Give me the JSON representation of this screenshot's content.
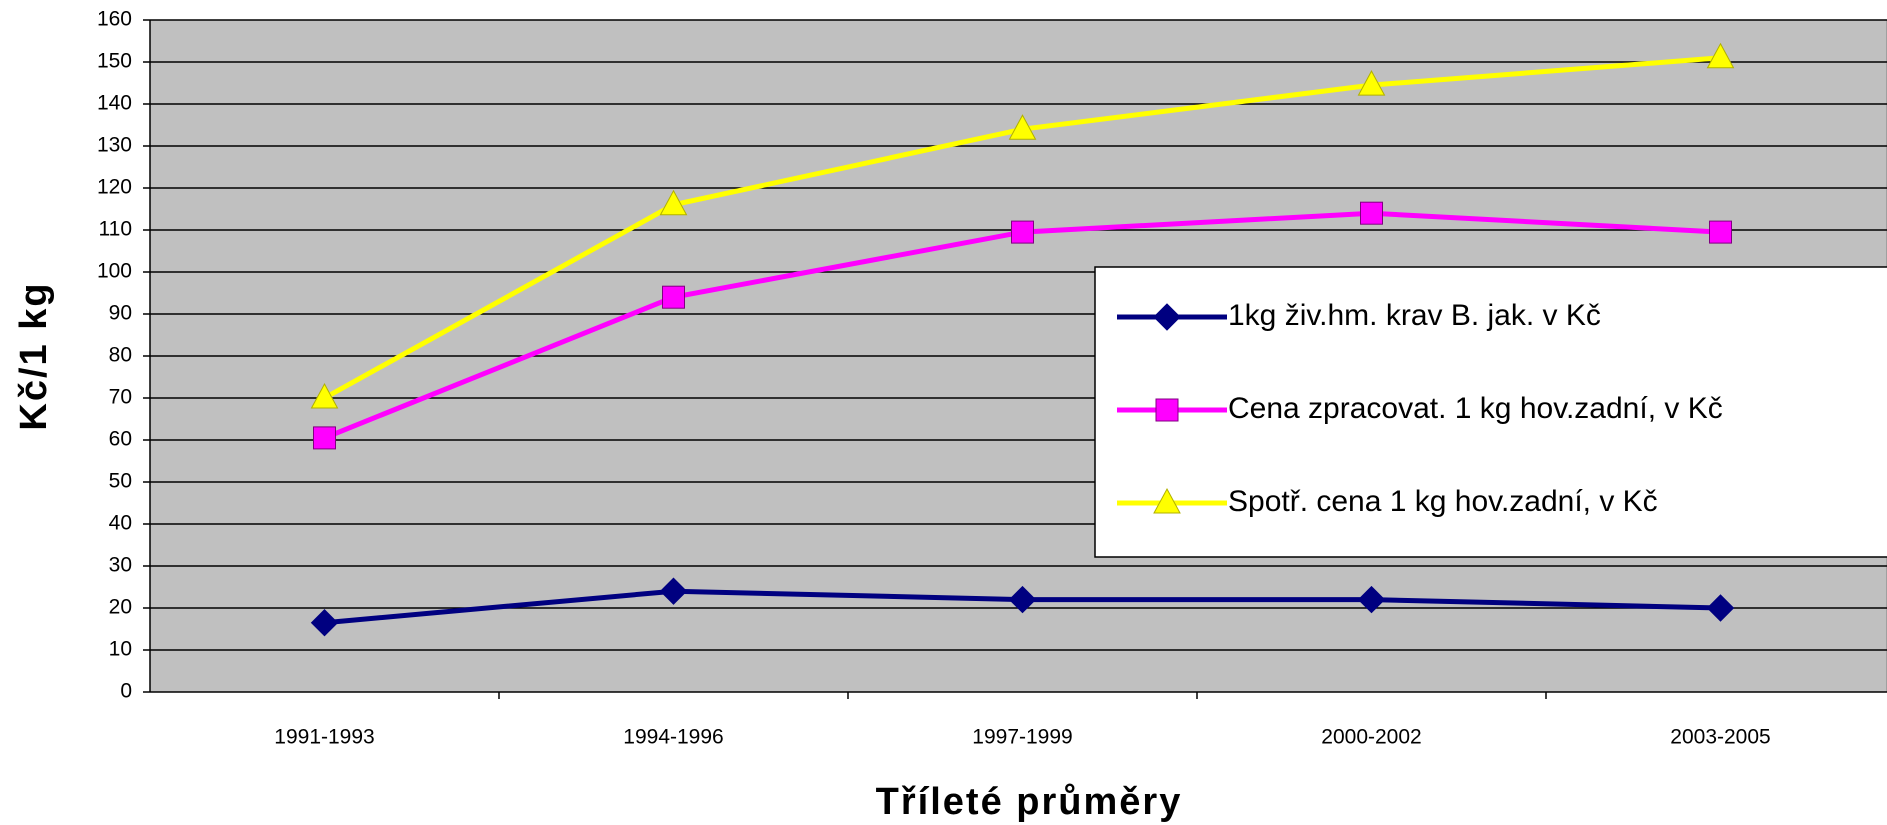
{
  "chart_data": {
    "type": "line",
    "categories": [
      "1991-1993",
      "1994-1996",
      "1997-1999",
      "2000-2002",
      "2003-2005"
    ],
    "series": [
      {
        "name": "1kg živ.hm. krav B. jak. v Kč",
        "color": "#000080",
        "marker": "diamond",
        "values": [
          16.5,
          24,
          22,
          22,
          20
        ]
      },
      {
        "name": "Cena zpracovat. 1 kg hov.zadní, v Kč",
        "color": "#ff00ff",
        "marker": "square",
        "values": [
          60.5,
          94,
          109.5,
          114,
          109.5
        ]
      },
      {
        "name": "Spotř. cena 1 kg hov.zadní, v Kč",
        "color": "#ffff00",
        "marker": "triangle",
        "values": [
          70,
          116,
          134,
          144.5,
          151
        ]
      }
    ],
    "ylabel": "Kč/1 kg",
    "xlabel": "Tříleté průměry",
    "ylim": [
      0,
      160
    ],
    "yticks": [
      0,
      10,
      20,
      30,
      40,
      50,
      60,
      70,
      80,
      90,
      100,
      110,
      120,
      130,
      140,
      150,
      160
    ],
    "grid": true,
    "legend": "right"
  }
}
